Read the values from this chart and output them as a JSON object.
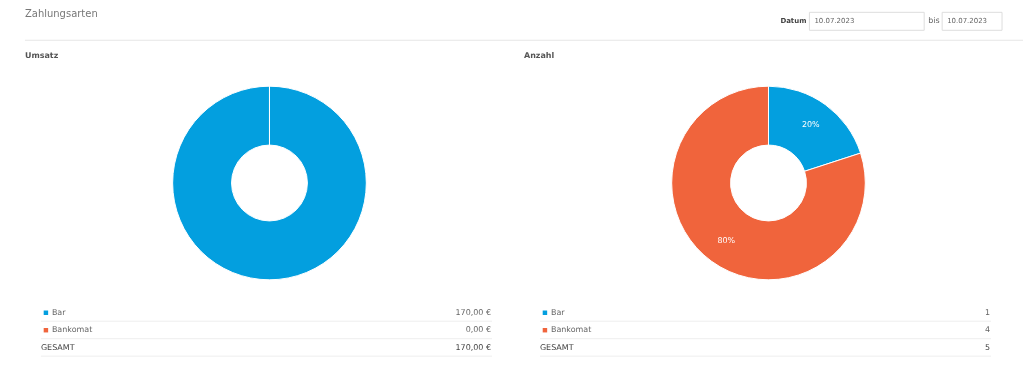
{
  "chart_data": [
    {
      "type": "donut",
      "title": "Umsatz",
      "categories": [
        "Bar",
        "Bankomat"
      ],
      "values": [
        170,
        0
      ],
      "colors": [
        "#039fdf",
        "#f0643c"
      ],
      "legend": "bottom",
      "value_labels": [
        "170,00 €",
        "0,00 €"
      ],
      "totals": [
        "170,00 €"
      ],
      "annotations": [
        "Zahlungsarten",
        "Datum",
        "10.07.2023",
        "bis",
        "10.07.2023",
        "GESAMT"
      ]
    },
    {
      "type": "donut",
      "title": "Anzahl",
      "categories": [
        "Bar",
        "Bankomat"
      ],
      "values": [
        1,
        4
      ],
      "colors": [
        "#039fdf",
        "#f0643c"
      ],
      "legend": "bottom",
      "data_labels": true,
      "totals": [
        "5"
      ],
      "annotations": [
        {
          "text": "20%",
          "x": "Bar"
        },
        {
          "text": "80%",
          "x": "Bankomat"
        },
        "GESAMT"
      ]
    }
  ]
}
